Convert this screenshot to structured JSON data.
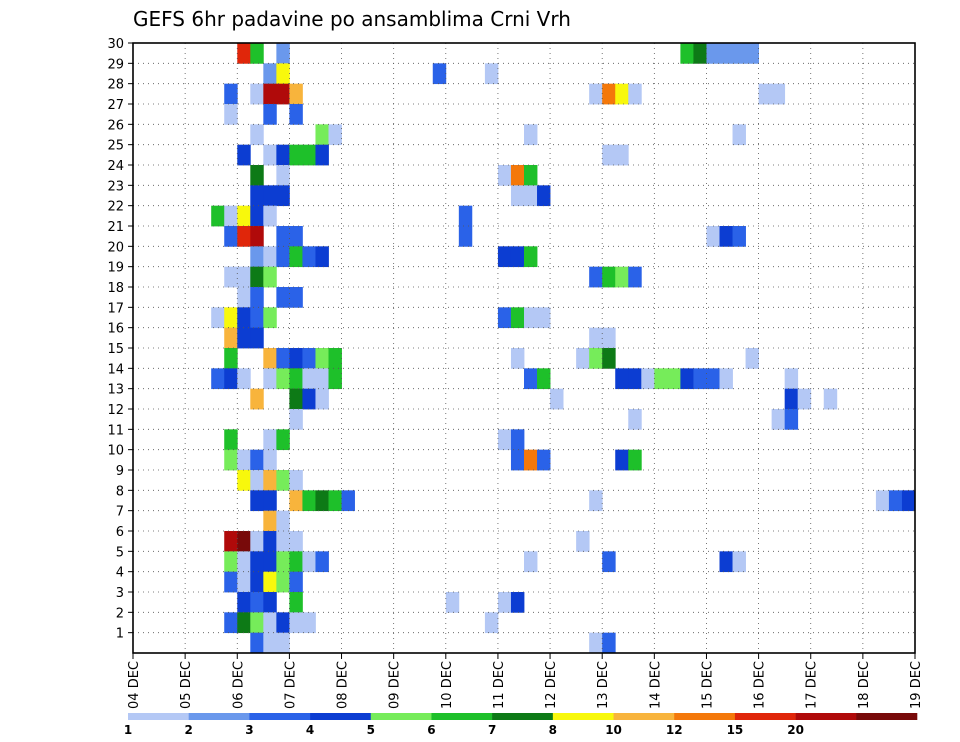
{
  "chart_data": {
    "type": "heatmap",
    "title": "GEFS 6hr padavine po ansamblima Crni Vrh",
    "x_ticks": [
      "04 DEC",
      "05 DEC",
      "06 DEC",
      "07 DEC",
      "08 DEC",
      "09 DEC",
      "10 DEC",
      "11 DEC",
      "12 DEC",
      "13 DEC",
      "14 DEC",
      "15 DEC",
      "16 DEC",
      "17 DEC",
      "18 DEC",
      "19 DEC"
    ],
    "y_ticks": [
      "1",
      "2",
      "3",
      "4",
      "5",
      "6",
      "7",
      "8",
      "9",
      "10",
      "11",
      "12",
      "13",
      "14",
      "15",
      "16",
      "17",
      "18",
      "19",
      "20",
      "21",
      "22",
      "23",
      "24",
      "25",
      "26",
      "27",
      "28",
      "29",
      "30"
    ],
    "xlim": [
      "04 DEC 00Z",
      "19 DEC 00Z"
    ],
    "ylim": [
      0,
      30
    ],
    "grid": true,
    "colorbar": {
      "levels": [
        "1",
        "2",
        "3",
        "4",
        "5",
        "6",
        "7",
        "8",
        "10",
        "12",
        "15",
        "20"
      ],
      "colors": [
        "#b4c8f5",
        "#6a98ec",
        "#2a62e8",
        "#0c3dd2",
        "#76ec5a",
        "#1ec02a",
        "#0d7a16",
        "#f8f80c",
        "#f8b43c",
        "#f4780a",
        "#e0260a",
        "#b00a0a",
        "#780a0a"
      ]
    },
    "cells_note": "x = forecast step index (6-hourly from 04 DEC 00Z, 4 steps per day); y = ensemble member; c = colour class index into colorbar.colors",
    "cells": [
      {
        "y": 30,
        "x": [
          [
            8,
            10
          ],
          [
            9,
            5
          ],
          [
            11,
            1
          ]
        ]
      },
      {
        "y": 30,
        "x": [
          [
            42,
            5
          ],
          [
            43,
            6
          ],
          [
            44,
            1
          ],
          [
            45,
            1
          ],
          [
            46,
            1
          ],
          [
            47,
            1
          ]
        ]
      },
      {
        "y": 29,
        "x": [
          [
            10,
            1
          ],
          [
            11,
            7
          ]
        ]
      },
      {
        "y": 29,
        "x": [
          [
            23,
            2
          ],
          [
            27,
            0
          ]
        ]
      },
      {
        "y": 28,
        "x": [
          [
            7,
            2
          ],
          [
            9,
            0
          ],
          [
            10,
            11
          ],
          [
            11,
            11
          ],
          [
            12,
            8
          ]
        ]
      },
      {
        "y": 28,
        "x": [
          [
            35,
            0
          ],
          [
            36,
            9
          ],
          [
            37,
            7
          ],
          [
            38,
            0
          ]
        ]
      },
      {
        "y": 28,
        "x": [
          [
            48,
            0
          ],
          [
            49,
            0
          ]
        ]
      },
      {
        "y": 27,
        "x": [
          [
            7,
            0
          ],
          [
            10,
            2
          ],
          [
            12,
            2
          ]
        ]
      },
      {
        "y": 26,
        "x": [
          [
            9,
            0
          ],
          [
            14,
            4
          ],
          [
            15,
            0
          ]
        ]
      },
      {
        "y": 26,
        "x": [
          [
            30,
            0
          ],
          [
            46,
            0
          ]
        ]
      },
      {
        "y": 25,
        "x": [
          [
            8,
            3
          ],
          [
            10,
            0
          ],
          [
            11,
            3
          ],
          [
            12,
            5
          ],
          [
            13,
            5
          ],
          [
            14,
            3
          ]
        ]
      },
      {
        "y": 25,
        "x": [
          [
            36,
            0
          ],
          [
            37,
            0
          ]
        ]
      },
      {
        "y": 24,
        "x": [
          [
            9,
            6
          ],
          [
            11,
            0
          ]
        ]
      },
      {
        "y": 24,
        "x": [
          [
            28,
            0
          ],
          [
            29,
            9
          ],
          [
            30,
            5
          ]
        ]
      },
      {
        "y": 23,
        "x": [
          [
            9,
            3
          ],
          [
            10,
            3
          ],
          [
            11,
            3
          ]
        ]
      },
      {
        "y": 23,
        "x": [
          [
            29,
            0
          ],
          [
            30,
            0
          ],
          [
            31,
            3
          ]
        ]
      },
      {
        "y": 22,
        "x": [
          [
            6,
            5
          ],
          [
            7,
            0
          ],
          [
            8,
            7
          ],
          [
            9,
            3
          ],
          [
            10,
            0
          ]
        ]
      },
      {
        "y": 22,
        "x": [
          [
            25,
            2
          ]
        ]
      },
      {
        "y": 21,
        "x": [
          [
            7,
            2
          ],
          [
            8,
            10
          ],
          [
            9,
            11
          ],
          [
            11,
            2
          ],
          [
            12,
            2
          ]
        ]
      },
      {
        "y": 21,
        "x": [
          [
            25,
            2
          ],
          [
            44,
            0
          ],
          [
            45,
            3
          ],
          [
            46,
            2
          ]
        ]
      },
      {
        "y": 20,
        "x": [
          [
            9,
            1
          ],
          [
            10,
            0
          ],
          [
            11,
            2
          ],
          [
            12,
            5
          ],
          [
            13,
            2
          ],
          [
            14,
            3
          ]
        ]
      },
      {
        "y": 20,
        "x": [
          [
            28,
            3
          ],
          [
            29,
            3
          ],
          [
            30,
            5
          ]
        ]
      },
      {
        "y": 19,
        "x": [
          [
            7,
            0
          ],
          [
            8,
            0
          ],
          [
            9,
            6
          ],
          [
            10,
            4
          ]
        ]
      },
      {
        "y": 19,
        "x": [
          [
            35,
            2
          ],
          [
            36,
            5
          ],
          [
            37,
            4
          ],
          [
            38,
            2
          ]
        ]
      },
      {
        "y": 18,
        "x": [
          [
            8,
            0
          ],
          [
            9,
            2
          ],
          [
            11,
            2
          ],
          [
            12,
            2
          ]
        ]
      },
      {
        "y": 17,
        "x": [
          [
            6,
            0
          ],
          [
            7,
            7
          ],
          [
            8,
            3
          ],
          [
            9,
            2
          ],
          [
            10,
            4
          ]
        ]
      },
      {
        "y": 17,
        "x": [
          [
            28,
            2
          ],
          [
            29,
            5
          ],
          [
            30,
            0
          ],
          [
            31,
            0
          ]
        ]
      },
      {
        "y": 16,
        "x": [
          [
            7,
            8
          ],
          [
            8,
            3
          ],
          [
            9,
            3
          ]
        ]
      },
      {
        "y": 16,
        "x": [
          [
            35,
            0
          ],
          [
            36,
            0
          ]
        ]
      },
      {
        "y": 15,
        "x": [
          [
            7,
            5
          ],
          [
            10,
            8
          ],
          [
            11,
            2
          ],
          [
            12,
            3
          ],
          [
            13,
            2
          ],
          [
            14,
            4
          ],
          [
            15,
            5
          ]
        ]
      },
      {
        "y": 15,
        "x": [
          [
            29,
            0
          ],
          [
            34,
            0
          ],
          [
            35,
            4
          ],
          [
            36,
            6
          ],
          [
            47,
            0
          ]
        ]
      },
      {
        "y": 14,
        "x": [
          [
            6,
            2
          ],
          [
            7,
            3
          ],
          [
            8,
            0
          ],
          [
            10,
            0
          ],
          [
            11,
            4
          ],
          [
            12,
            5
          ],
          [
            13,
            0
          ],
          [
            14,
            0
          ],
          [
            15,
            5
          ]
        ]
      },
      {
        "y": 14,
        "x": [
          [
            30,
            2
          ],
          [
            31,
            5
          ]
        ]
      },
      {
        "y": 14,
        "x": [
          [
            37,
            3
          ],
          [
            38,
            3
          ],
          [
            39,
            0
          ],
          [
            40,
            4
          ],
          [
            41,
            4
          ],
          [
            42,
            3
          ],
          [
            43,
            2
          ],
          [
            44,
            2
          ],
          [
            45,
            0
          ],
          [
            50,
            0
          ]
        ]
      },
      {
        "y": 13,
        "x": [
          [
            9,
            8
          ],
          [
            12,
            6
          ],
          [
            13,
            3
          ],
          [
            14,
            0
          ]
        ]
      },
      {
        "y": 13,
        "x": [
          [
            32,
            0
          ],
          [
            50,
            3
          ],
          [
            51,
            0
          ],
          [
            53,
            0
          ]
        ]
      },
      {
        "y": 12,
        "x": [
          [
            12,
            0
          ]
        ]
      },
      {
        "y": 12,
        "x": [
          [
            38,
            0
          ],
          [
            49,
            0
          ],
          [
            50,
            2
          ]
        ]
      },
      {
        "y": 11,
        "x": [
          [
            7,
            5
          ],
          [
            10,
            0
          ],
          [
            11,
            5
          ]
        ]
      },
      {
        "y": 11,
        "x": [
          [
            28,
            0
          ],
          [
            29,
            2
          ]
        ]
      },
      {
        "y": 10,
        "x": [
          [
            7,
            4
          ],
          [
            8,
            0
          ],
          [
            9,
            2
          ],
          [
            10,
            0
          ]
        ]
      },
      {
        "y": 10,
        "x": [
          [
            29,
            2
          ],
          [
            30,
            9
          ],
          [
            31,
            2
          ],
          [
            37,
            3
          ],
          [
            38,
            5
          ]
        ]
      },
      {
        "y": 9,
        "x": [
          [
            8,
            7
          ],
          [
            9,
            0
          ],
          [
            10,
            8
          ],
          [
            11,
            4
          ],
          [
            12,
            0
          ]
        ]
      },
      {
        "y": 8,
        "x": [
          [
            9,
            3
          ],
          [
            10,
            3
          ],
          [
            12,
            8
          ],
          [
            13,
            5
          ],
          [
            14,
            6
          ],
          [
            15,
            5
          ],
          [
            16,
            2
          ]
        ]
      },
      {
        "y": 8,
        "x": [
          [
            35,
            0
          ],
          [
            57,
            0
          ],
          [
            58,
            2
          ],
          [
            59,
            3
          ]
        ]
      },
      {
        "y": 7,
        "x": [
          [
            10,
            8
          ],
          [
            11,
            0
          ]
        ]
      },
      {
        "y": 6,
        "x": [
          [
            7,
            11
          ],
          [
            8,
            12
          ],
          [
            9,
            0
          ],
          [
            10,
            3
          ],
          [
            11,
            0
          ],
          [
            12,
            0
          ]
        ]
      },
      {
        "y": 6,
        "x": [
          [
            34,
            0
          ]
        ]
      },
      {
        "y": 5,
        "x": [
          [
            7,
            4
          ],
          [
            8,
            0
          ],
          [
            9,
            3
          ],
          [
            10,
            3
          ],
          [
            11,
            4
          ],
          [
            12,
            5
          ],
          [
            13,
            0
          ],
          [
            14,
            2
          ]
        ]
      },
      {
        "y": 5,
        "x": [
          [
            30,
            0
          ],
          [
            36,
            2
          ],
          [
            45,
            3
          ],
          [
            46,
            0
          ]
        ]
      },
      {
        "y": 4,
        "x": [
          [
            7,
            2
          ],
          [
            8,
            0
          ],
          [
            9,
            3
          ],
          [
            10,
            7
          ],
          [
            11,
            4
          ],
          [
            12,
            2
          ]
        ]
      },
      {
        "y": 3,
        "x": [
          [
            8,
            3
          ],
          [
            9,
            2
          ],
          [
            10,
            3
          ],
          [
            12,
            5
          ]
        ]
      },
      {
        "y": 3,
        "x": [
          [
            24,
            0
          ],
          [
            28,
            0
          ],
          [
            29,
            3
          ]
        ]
      },
      {
        "y": 2,
        "x": [
          [
            7,
            2
          ],
          [
            8,
            6
          ],
          [
            9,
            4
          ],
          [
            10,
            0
          ],
          [
            11,
            3
          ],
          [
            12,
            0
          ],
          [
            13,
            0
          ]
        ]
      },
      {
        "y": 2,
        "x": [
          [
            27,
            0
          ]
        ]
      },
      {
        "y": 1,
        "x": [
          [
            9,
            2
          ],
          [
            10,
            0
          ],
          [
            11,
            0
          ],
          [
            35,
            0
          ],
          [
            36,
            2
          ]
        ]
      }
    ]
  }
}
